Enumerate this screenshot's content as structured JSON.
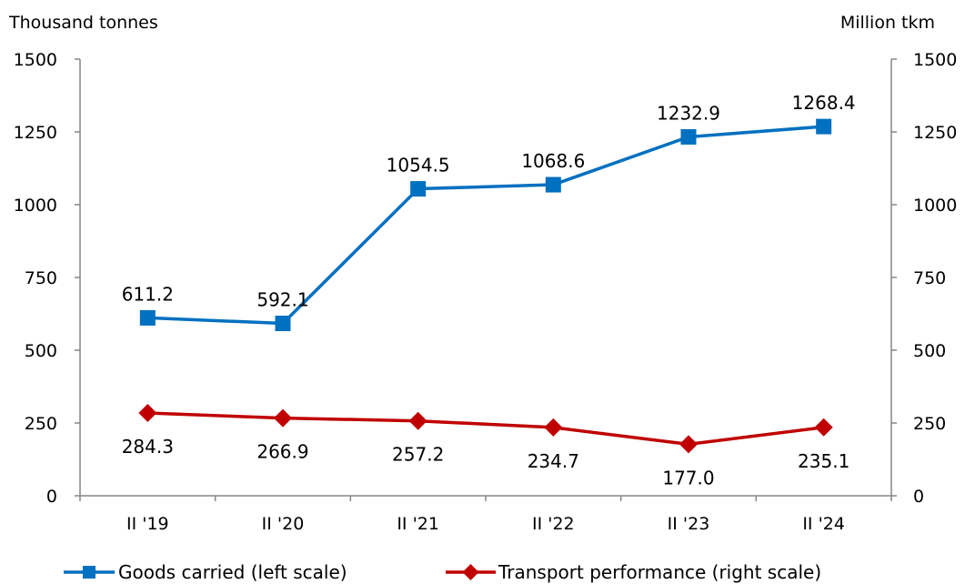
{
  "chart_data": {
    "type": "line",
    "categories": [
      "II '19",
      "II '20",
      "II '21",
      "II '22",
      "II '23",
      "II '24"
    ],
    "series": [
      {
        "name": "Goods carried (left scale)",
        "axis": "left",
        "color": "#0070C0",
        "marker": "square",
        "values": [
          611.2,
          592.1,
          1054.5,
          1068.6,
          1232.9,
          1268.4
        ],
        "labels": [
          "611.2",
          "592.1",
          "1054.5",
          "1068.6",
          "1232.9",
          "1268.4"
        ],
        "label_position": "above"
      },
      {
        "name": "Transport performance (right scale)",
        "axis": "right",
        "color": "#C00000",
        "marker": "diamond",
        "values": [
          284.3,
          266.9,
          257.2,
          234.7,
          177.0,
          235.1
        ],
        "labels": [
          "284.3",
          "266.9",
          "257.2",
          "234.7",
          "177.0",
          "235.1"
        ],
        "label_position": "below"
      }
    ],
    "ylabel_left": "Thousand tonnes",
    "ylabel_right": "Million tkm",
    "ylim_left": [
      0,
      1500
    ],
    "ylim_right": [
      0,
      1500
    ],
    "yticks_left": [
      "0",
      "250",
      "500",
      "750",
      "1000",
      "1250",
      "1500"
    ],
    "yticks_right": [
      "0",
      "250",
      "500",
      "750",
      "1000",
      "1250",
      "1500"
    ],
    "grid": false,
    "legend_position": "bottom"
  }
}
